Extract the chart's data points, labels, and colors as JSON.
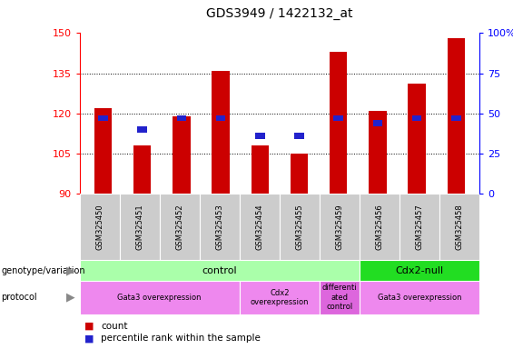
{
  "title": "GDS3949 / 1422132_at",
  "samples": [
    "GSM325450",
    "GSM325451",
    "GSM325452",
    "GSM325453",
    "GSM325454",
    "GSM325455",
    "GSM325459",
    "GSM325456",
    "GSM325457",
    "GSM325458"
  ],
  "count_values": [
    122,
    108,
    119,
    136,
    108,
    105,
    143,
    121,
    131,
    148
  ],
  "percentile_values": [
    47,
    40,
    47,
    47,
    36,
    36,
    47,
    44,
    47,
    47
  ],
  "y_min": 90,
  "y_max": 150,
  "y_ticks": [
    90,
    105,
    120,
    135,
    150
  ],
  "right_y_ticks": [
    0,
    25,
    50,
    75,
    100
  ],
  "right_y_labels": [
    "0",
    "25",
    "50",
    "75",
    "100%"
  ],
  "bar_color": "#cc0000",
  "blue_color": "#2222cc",
  "genotype_groups": [
    {
      "label": "control",
      "start": 0,
      "end": 7,
      "color": "#aaffaa"
    },
    {
      "label": "Cdx2-null",
      "start": 7,
      "end": 10,
      "color": "#22dd22"
    }
  ],
  "protocol_groups": [
    {
      "label": "Gata3 overexpression",
      "start": 0,
      "end": 4,
      "color": "#ee88ee"
    },
    {
      "label": "Cdx2\noverexpression",
      "start": 4,
      "end": 6,
      "color": "#ee88ee"
    },
    {
      "label": "differenti\nated\ncontrol",
      "start": 6,
      "end": 7,
      "color": "#dd66dd"
    },
    {
      "label": "Gata3 overexpression",
      "start": 7,
      "end": 10,
      "color": "#ee88ee"
    }
  ],
  "legend_count_color": "#cc0000",
  "legend_pct_color": "#2222cc",
  "bar_width": 0.45
}
